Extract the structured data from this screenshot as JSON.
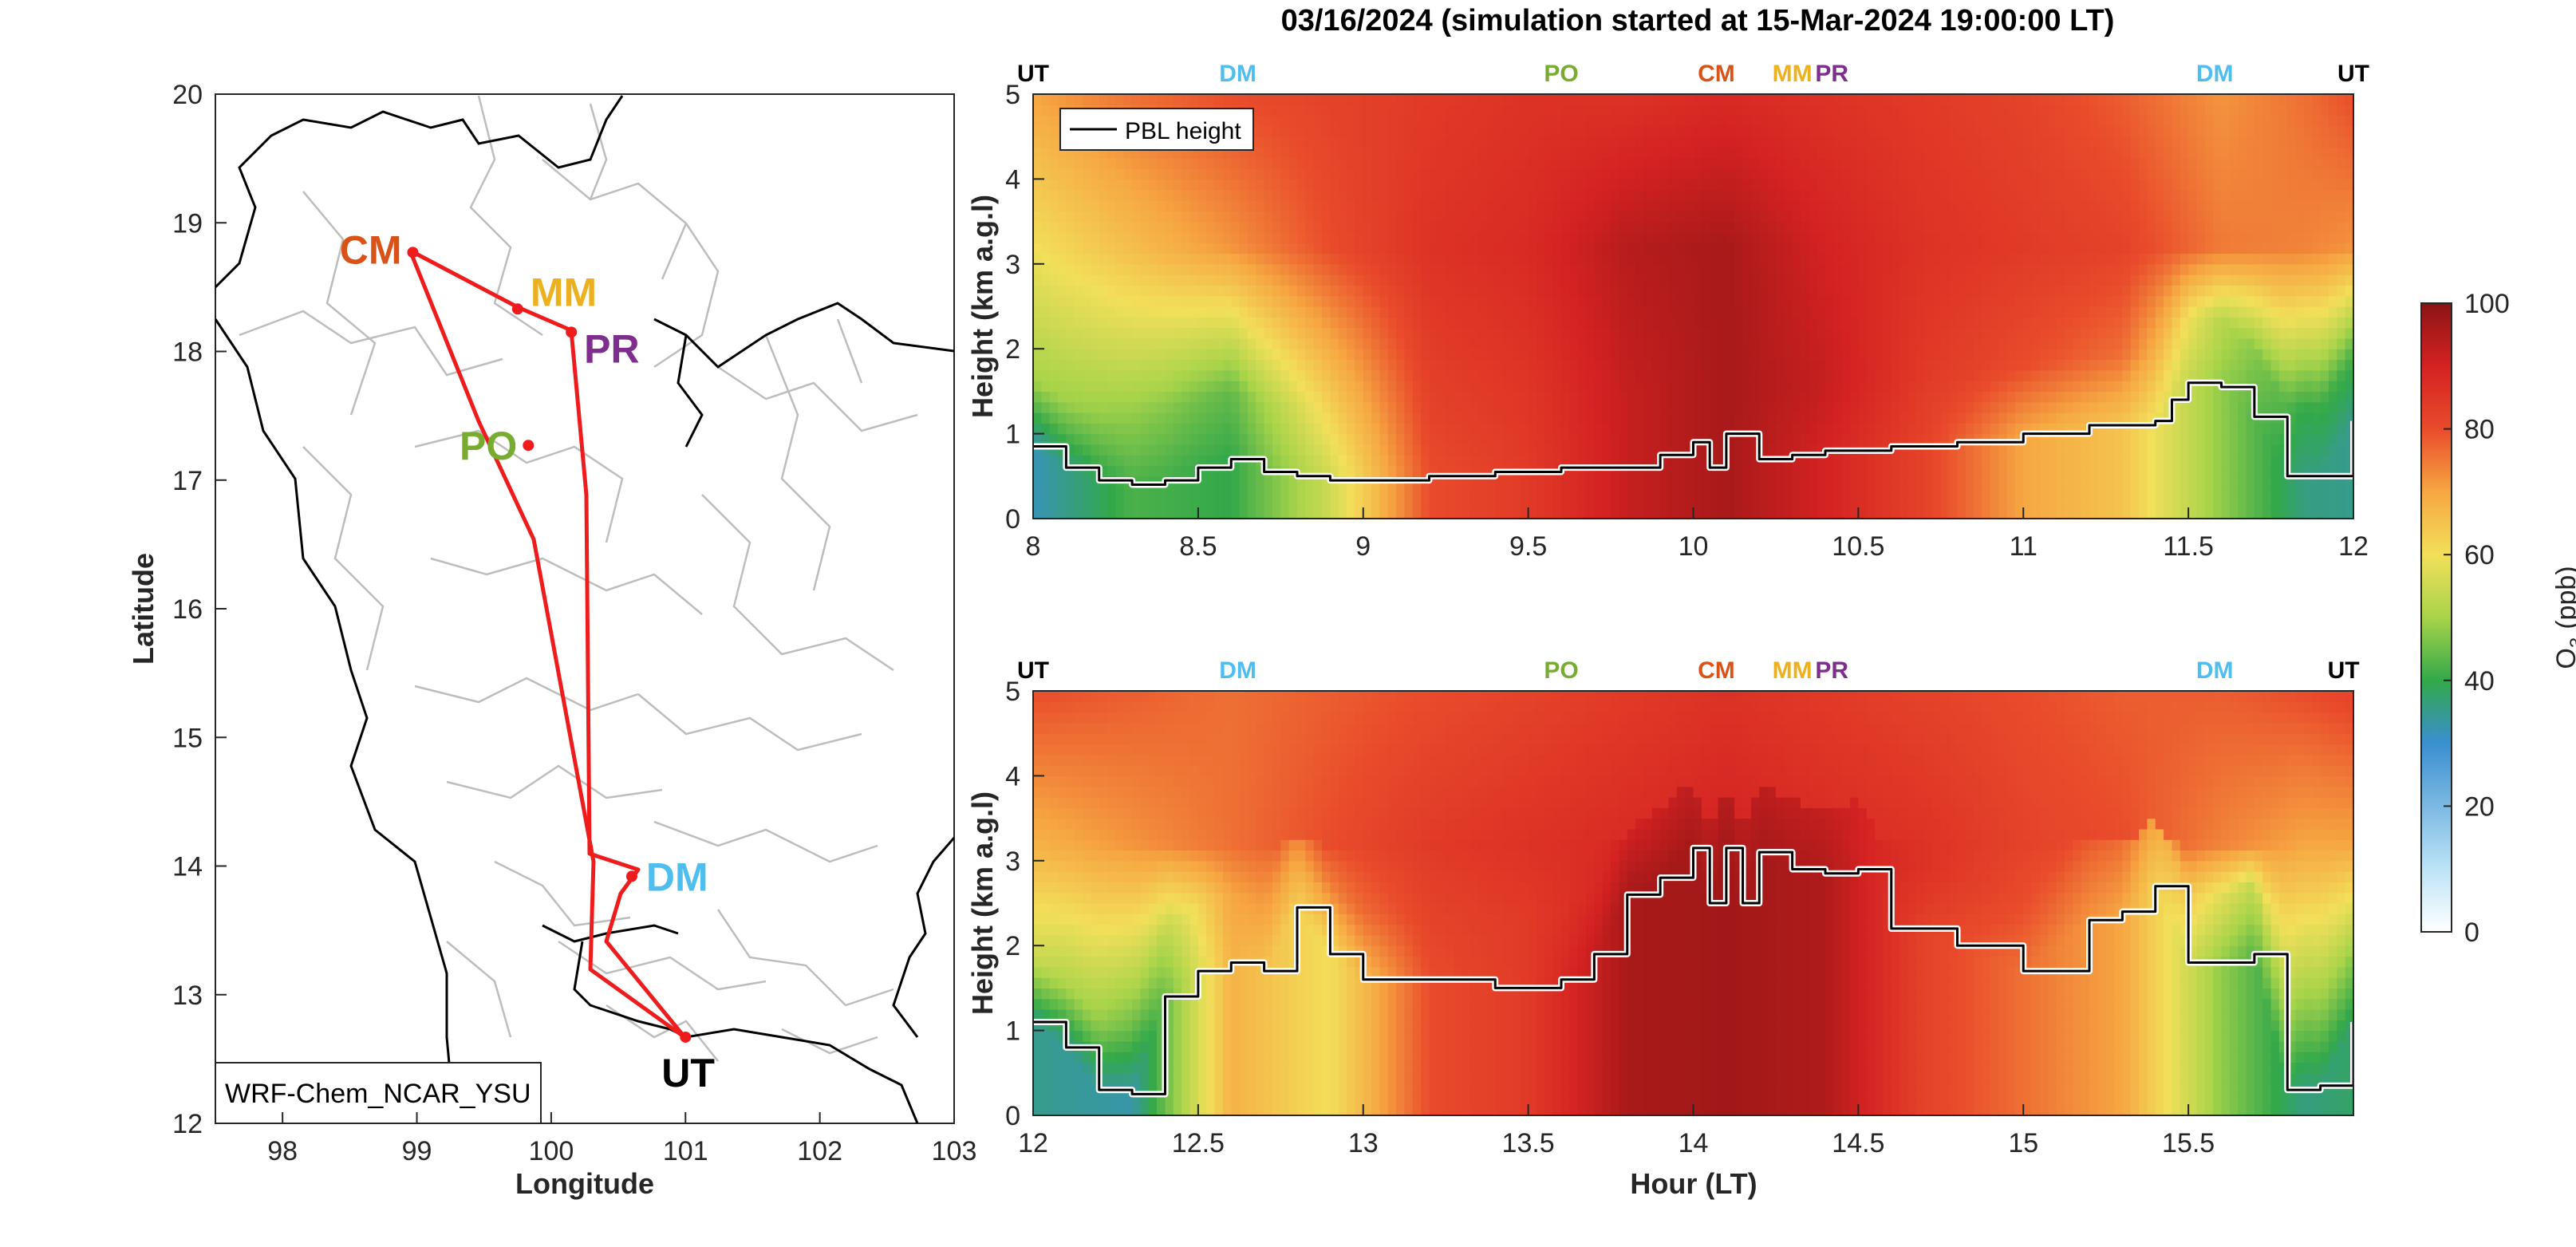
{
  "title": "03/16/2024 (simulation started at 15-Mar-2024 19:00:00 LT)",
  "colors": {
    "route": "#ee1c1c",
    "boundary": "#000000",
    "province": "#bdbdbd",
    "pbl_outline": "#ffffff",
    "pbl_line": "#000000",
    "sites": {
      "UT": "#000000",
      "DM": "#4dbeee",
      "PO": "#77ac30",
      "CM": "#d95319",
      "MM": "#edb120",
      "PR": "#7e2f8e"
    }
  },
  "map": {
    "model_label": "WRF-Chem_NCAR_YSU",
    "xlabel": "Longitude",
    "ylabel": "Latitude",
    "xlim": [
      97.5,
      103
    ],
    "ylim": [
      12,
      20
    ],
    "xticks": [
      "98",
      "99",
      "100",
      "101",
      "102",
      "103"
    ],
    "yticks": [
      "12",
      "13",
      "14",
      "15",
      "16",
      "17",
      "18",
      "19",
      "20"
    ],
    "sites": [
      {
        "code": "CM",
        "lon": 98.97,
        "lat": 18.77
      },
      {
        "code": "MM",
        "lon": 99.75,
        "lat": 18.33
      },
      {
        "code": "PR",
        "lon": 100.15,
        "lat": 18.15
      },
      {
        "code": "PO",
        "lon": 99.83,
        "lat": 17.27
      },
      {
        "code": "DM",
        "lon": 100.6,
        "lat": 13.92
      },
      {
        "code": "UT",
        "lon": 101.0,
        "lat": 12.67
      }
    ]
  },
  "chart_data": [
    {
      "type": "heatmap",
      "title": "03/16/2024 (simulation started at 15-Mar-2024 19:00:00 LT)",
      "xlabel": "",
      "ylabel": "Height (km a.g.l)",
      "xlim": [
        8,
        12
      ],
      "ylim": [
        0,
        5
      ],
      "xticks": [
        "8",
        "8.5",
        "9",
        "9.5",
        "10",
        "10.5",
        "11",
        "11.5",
        "12"
      ],
      "yticks": [
        "0",
        "1",
        "2",
        "3",
        "4",
        "5"
      ],
      "legend": {
        "entry": "PBL height",
        "placement": "top-left"
      },
      "site_markers": [
        {
          "code": "UT",
          "hour": 8.0
        },
        {
          "code": "DM",
          "hour": 8.62
        },
        {
          "code": "PO",
          "hour": 9.6
        },
        {
          "code": "CM",
          "hour": 10.07
        },
        {
          "code": "MM",
          "hour": 10.3
        },
        {
          "code": "PR",
          "hour": 10.42
        },
        {
          "code": "DM",
          "hour": 11.58
        },
        {
          "code": "UT",
          "hour": 12.0
        }
      ],
      "pbl_height": {
        "hour": [
          8.0,
          8.1,
          8.2,
          8.3,
          8.4,
          8.5,
          8.6,
          8.7,
          8.8,
          8.9,
          9.0,
          9.2,
          9.4,
          9.6,
          9.8,
          9.9,
          10.0,
          10.05,
          10.1,
          10.2,
          10.3,
          10.4,
          10.6,
          10.8,
          11.0,
          11.2,
          11.4,
          11.45,
          11.5,
          11.6,
          11.7,
          11.8,
          11.9,
          12.0
        ],
        "km": [
          0.85,
          0.6,
          0.45,
          0.4,
          0.45,
          0.6,
          0.7,
          0.55,
          0.5,
          0.45,
          0.45,
          0.5,
          0.55,
          0.6,
          0.6,
          0.75,
          0.9,
          0.6,
          1.0,
          0.7,
          0.75,
          0.8,
          0.85,
          0.9,
          1.0,
          1.1,
          1.15,
          1.4,
          1.6,
          1.55,
          1.2,
          0.5,
          0.5,
          1.15
        ]
      },
      "o3_ppb_profile": {
        "hour": [
          8.0,
          8.3,
          8.6,
          8.9,
          9.2,
          9.5,
          9.8,
          10.1,
          10.4,
          10.7,
          11.0,
          11.3,
          11.6,
          11.85,
          12.0
        ],
        "bl": [
          32,
          42,
          40,
          55,
          80,
          84,
          92,
          96,
          90,
          82,
          70,
          65,
          48,
          36,
          35
        ],
        "mid": [
          50,
          48,
          44,
          62,
          82,
          85,
          92,
          96,
          92,
          84,
          80,
          76,
          52,
          40,
          42
        ],
        "upper": [
          60,
          66,
          72,
          80,
          86,
          88,
          94,
          96,
          90,
          86,
          84,
          82,
          75,
          74,
          72
        ],
        "top": [
          70,
          76,
          80,
          82,
          84,
          86,
          86,
          88,
          86,
          84,
          82,
          78,
          72,
          76,
          80
        ]
      }
    },
    {
      "type": "heatmap",
      "xlabel": "Hour (LT)",
      "ylabel": "Height (km a.g.l)",
      "xlim": [
        12,
        16
      ],
      "ylim": [
        0,
        5
      ],
      "xticks": [
        "12",
        "12.5",
        "13",
        "13.5",
        "14",
        "14.5",
        "15",
        "15.5"
      ],
      "yticks": [
        "0",
        "1",
        "2",
        "3",
        "4",
        "5"
      ],
      "site_markers": [
        {
          "code": "UT",
          "hour": 12.0
        },
        {
          "code": "DM",
          "hour": 12.62
        },
        {
          "code": "PO",
          "hour": 13.6
        },
        {
          "code": "CM",
          "hour": 14.07
        },
        {
          "code": "MM",
          "hour": 14.3
        },
        {
          "code": "PR",
          "hour": 14.42
        },
        {
          "code": "DM",
          "hour": 15.58
        },
        {
          "code": "UT",
          "hour": 15.97
        }
      ],
      "pbl_height": {
        "hour": [
          12.0,
          12.1,
          12.2,
          12.3,
          12.4,
          12.5,
          12.6,
          12.7,
          12.8,
          12.9,
          13.0,
          13.2,
          13.4,
          13.6,
          13.7,
          13.8,
          13.9,
          14.0,
          14.05,
          14.1,
          14.15,
          14.2,
          14.3,
          14.4,
          14.5,
          14.6,
          14.8,
          15.0,
          15.2,
          15.3,
          15.4,
          15.5,
          15.6,
          15.7,
          15.8,
          15.9,
          16.0
        ],
        "km": [
          1.1,
          0.8,
          0.3,
          0.25,
          1.4,
          1.7,
          1.8,
          1.7,
          2.45,
          1.9,
          1.6,
          1.6,
          1.5,
          1.6,
          1.9,
          2.6,
          2.8,
          3.15,
          2.5,
          3.15,
          2.5,
          3.1,
          2.9,
          2.85,
          2.9,
          2.2,
          2.0,
          1.7,
          2.3,
          2.4,
          2.7,
          1.8,
          1.8,
          1.9,
          0.3,
          0.35,
          1.1
        ]
      },
      "o3_ppb_profile": {
        "hour": [
          12.0,
          12.3,
          12.6,
          12.9,
          13.2,
          13.5,
          13.8,
          14.1,
          14.4,
          14.7,
          15.0,
          15.3,
          15.6,
          15.85,
          16.0
        ],
        "bl": [
          35,
          33,
          68,
          60,
          80,
          84,
          96,
          97,
          95,
          82,
          76,
          70,
          48,
          36,
          38
        ],
        "mid": [
          55,
          45,
          70,
          74,
          82,
          84,
          90,
          94,
          92,
          86,
          80,
          76,
          58,
          46,
          48
        ],
        "upper": [
          68,
          72,
          76,
          80,
          84,
          86,
          88,
          90,
          88,
          86,
          82,
          80,
          74,
          70,
          70
        ],
        "top": [
          80,
          78,
          76,
          78,
          80,
          82,
          84,
          86,
          84,
          82,
          80,
          78,
          78,
          80,
          82
        ]
      }
    }
  ],
  "colorbar": {
    "label": "O3 (ppb)",
    "label_main": "O",
    "label_sub": "3",
    "label_unit": "(ppb)",
    "range": [
      0,
      100
    ],
    "ticks": [
      "0",
      "20",
      "40",
      "60",
      "80",
      "100"
    ]
  }
}
